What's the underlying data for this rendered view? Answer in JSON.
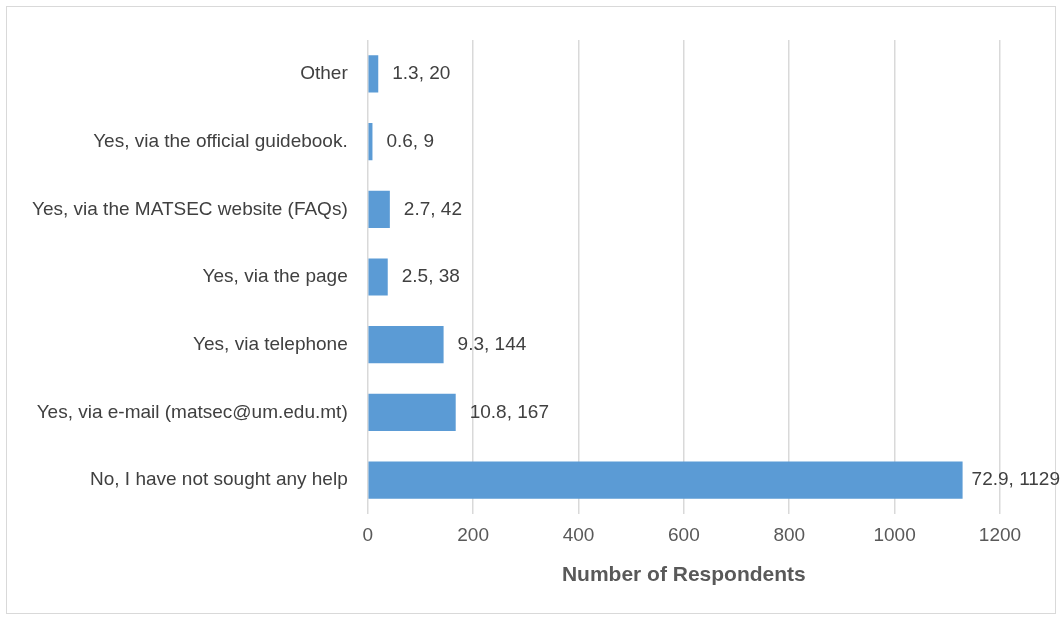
{
  "chart_data": {
    "type": "bar",
    "orientation": "horizontal",
    "xlabel": "Number of Respondents",
    "categories": [
      "Other",
      "Yes, via the official guidebook.",
      "Yes, via the MATSEC website (FAQs)",
      "Yes, via the page",
      "Yes, via telephone",
      "Yes, via e-mail (matsec@um.edu.mt)",
      "No, I have not sought any help"
    ],
    "values": [
      20,
      9,
      42,
      38,
      144,
      167,
      1129
    ],
    "value_labels": [
      "1.3, 20",
      "0.6, 9",
      "2.7, 42",
      "2.5, 38",
      "9.3, 144",
      "10.8, 167",
      "72.9, 1129"
    ],
    "color": "#5b9bd5",
    "xlim": [
      0,
      1200
    ],
    "xticks": [
      0,
      200,
      400,
      600,
      800,
      1000,
      1200
    ],
    "grid": "x",
    "legend": false
  }
}
